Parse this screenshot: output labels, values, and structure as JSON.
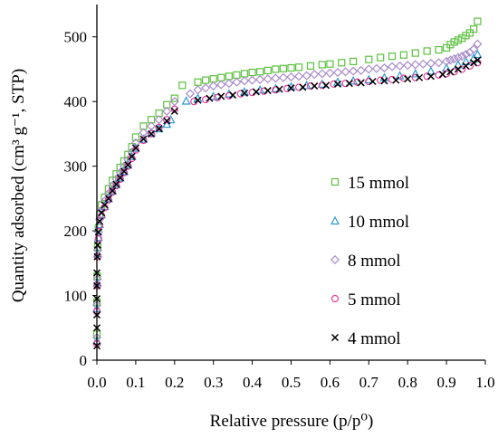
{
  "chart_data": {
    "type": "scatter",
    "xlabel": "Relative pressure (p/p⁰)",
    "ylabel": "Quantity adsorbed (cm³ g⁻¹, STP)",
    "xlim": [
      0,
      1.0
    ],
    "ylim": [
      0,
      550
    ],
    "xticks": [
      "0.0",
      "0.1",
      "0.2",
      "0.3",
      "0.4",
      "0.5",
      "0.6",
      "0.7",
      "0.8",
      "0.9",
      "1.0"
    ],
    "yticks": [
      "0",
      "100",
      "200",
      "300",
      "400",
      "500"
    ],
    "grid": false,
    "legend_position": "right",
    "series": [
      {
        "name": "15 mmol",
        "marker": "square",
        "color": "#5cc13f",
        "x": [
          0.0,
          0.0,
          0.001,
          0.002,
          0.004,
          0.007,
          0.012,
          0.02,
          0.03,
          0.04,
          0.05,
          0.06,
          0.07,
          0.08,
          0.09,
          0.1,
          0.12,
          0.14,
          0.16,
          0.18,
          0.2,
          0.22,
          0.26,
          0.28,
          0.3,
          0.32,
          0.34,
          0.36,
          0.38,
          0.4,
          0.42,
          0.44,
          0.46,
          0.48,
          0.5,
          0.52,
          0.55,
          0.58,
          0.6,
          0.63,
          0.66,
          0.7,
          0.73,
          0.76,
          0.79,
          0.82,
          0.85,
          0.88,
          0.9,
          0.91,
          0.92,
          0.93,
          0.94,
          0.95,
          0.96,
          0.97,
          0.98
        ],
        "y": [
          40,
          90,
          130,
          175,
          205,
          225,
          240,
          252,
          265,
          278,
          288,
          298,
          308,
          318,
          330,
          345,
          362,
          372,
          382,
          395,
          405,
          425,
          430,
          433,
          435,
          437,
          439,
          441,
          443,
          445,
          446,
          448,
          450,
          451,
          452,
          453,
          455,
          457,
          458,
          460,
          462,
          465,
          468,
          470,
          472,
          475,
          478,
          480,
          483,
          488,
          492,
          495,
          498,
          502,
          506,
          512,
          524
        ]
      },
      {
        "name": "10 mmol",
        "marker": "triangle",
        "color": "#2a9ad0",
        "x": [
          0.0,
          0.0,
          0.001,
          0.002,
          0.004,
          0.007,
          0.012,
          0.02,
          0.03,
          0.04,
          0.05,
          0.06,
          0.07,
          0.08,
          0.09,
          0.1,
          0.12,
          0.14,
          0.16,
          0.18,
          0.19,
          0.23,
          0.26,
          0.3,
          0.34,
          0.38,
          0.42,
          0.46,
          0.5,
          0.54,
          0.58,
          0.62,
          0.66,
          0.7,
          0.74,
          0.78,
          0.82,
          0.86,
          0.9,
          0.93,
          0.95,
          0.97,
          0.98
        ],
        "y": [
          30,
          80,
          120,
          165,
          190,
          210,
          225,
          238,
          250,
          262,
          272,
          282,
          292,
          302,
          315,
          328,
          342,
          352,
          358,
          365,
          372,
          401,
          405,
          408,
          412,
          415,
          418,
          420,
          423,
          425,
          427,
          430,
          432,
          434,
          437,
          440,
          443,
          447,
          452,
          457,
          462,
          467,
          473
        ]
      },
      {
        "name": "8 mmol",
        "marker": "diamond",
        "color": "#a98bc9",
        "x": [
          0.0,
          0.0,
          0.001,
          0.002,
          0.004,
          0.007,
          0.012,
          0.02,
          0.03,
          0.04,
          0.05,
          0.06,
          0.07,
          0.08,
          0.09,
          0.1,
          0.12,
          0.14,
          0.16,
          0.18,
          0.2,
          0.24,
          0.26,
          0.28,
          0.3,
          0.32,
          0.34,
          0.36,
          0.38,
          0.4,
          0.42,
          0.44,
          0.46,
          0.48,
          0.5,
          0.52,
          0.54,
          0.56,
          0.58,
          0.6,
          0.62,
          0.64,
          0.66,
          0.68,
          0.7,
          0.72,
          0.74,
          0.76,
          0.78,
          0.8,
          0.82,
          0.84,
          0.86,
          0.88,
          0.9,
          0.91,
          0.92,
          0.93,
          0.94,
          0.95,
          0.96,
          0.97,
          0.98
        ],
        "y": [
          35,
          85,
          125,
          170,
          198,
          218,
          232,
          246,
          258,
          270,
          280,
          290,
          300,
          310,
          322,
          336,
          352,
          362,
          372,
          385,
          400,
          412,
          418,
          421,
          424,
          426,
          428,
          430,
          432,
          433,
          434,
          435,
          436,
          437,
          438,
          439,
          440,
          442,
          443,
          444,
          445,
          446,
          447,
          448,
          450,
          451,
          452,
          454,
          455,
          456,
          457,
          458,
          459,
          460,
          462,
          464,
          466,
          468,
          470,
          473,
          476,
          481,
          489
        ]
      },
      {
        "name": "5 mmol",
        "marker": "circle",
        "color": "#e83aa1",
        "x": [
          0.0,
          0.0,
          0.001,
          0.002,
          0.004,
          0.007,
          0.012,
          0.02,
          0.03,
          0.04,
          0.05,
          0.06,
          0.07,
          0.08,
          0.09,
          0.1,
          0.12,
          0.14,
          0.16,
          0.18,
          0.2,
          0.25,
          0.28,
          0.31,
          0.34,
          0.37,
          0.4,
          0.43,
          0.46,
          0.49,
          0.52,
          0.55,
          0.58,
          0.61,
          0.64,
          0.67,
          0.7,
          0.73,
          0.76,
          0.79,
          0.82,
          0.85,
          0.88,
          0.9,
          0.92,
          0.94,
          0.96,
          0.98
        ],
        "y": [
          25,
          75,
          115,
          160,
          188,
          208,
          223,
          236,
          248,
          260,
          270,
          280,
          290,
          300,
          312,
          325,
          340,
          350,
          360,
          372,
          388,
          400,
          403,
          406,
          409,
          412,
          414,
          416,
          418,
          420,
          422,
          424,
          425,
          427,
          428,
          430,
          431,
          433,
          434,
          436,
          437,
          439,
          441,
          443,
          446,
          450,
          455,
          460
        ]
      },
      {
        "name": "4 mmol",
        "marker": "x",
        "color": "#000000",
        "x": [
          0.0,
          0.0,
          0.0,
          0.0,
          0.0,
          0.0,
          0.001,
          0.002,
          0.004,
          0.007,
          0.012,
          0.02,
          0.03,
          0.04,
          0.05,
          0.06,
          0.07,
          0.08,
          0.09,
          0.1,
          0.12,
          0.14,
          0.16,
          0.18,
          0.2,
          0.26,
          0.29,
          0.32,
          0.35,
          0.38,
          0.41,
          0.44,
          0.47,
          0.5,
          0.53,
          0.56,
          0.59,
          0.62,
          0.65,
          0.68,
          0.71,
          0.74,
          0.77,
          0.8,
          0.83,
          0.86,
          0.89,
          0.91,
          0.93,
          0.95,
          0.97,
          0.98
        ],
        "y": [
          22,
          50,
          70,
          95,
          115,
          135,
          160,
          178,
          198,
          215,
          228,
          240,
          250,
          262,
          272,
          282,
          292,
          302,
          315,
          328,
          342,
          350,
          358,
          370,
          385,
          402,
          405,
          408,
          410,
          413,
          415,
          417,
          419,
          421,
          422,
          424,
          425,
          427,
          428,
          429,
          431,
          432,
          433,
          435,
          437,
          439,
          442,
          446,
          450,
          455,
          460,
          464
        ]
      }
    ]
  }
}
